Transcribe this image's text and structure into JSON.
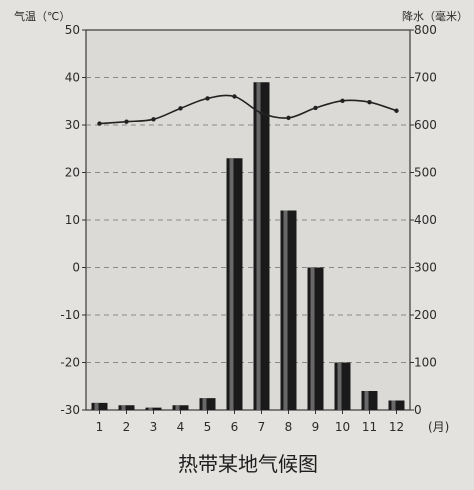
{
  "chart_data": {
    "type": "bar",
    "title": "热带某地气候图",
    "xlabel": "(月)",
    "categories": [
      "1",
      "2",
      "3",
      "4",
      "5",
      "6",
      "7",
      "8",
      "9",
      "10",
      "11",
      "12"
    ],
    "y_left": {
      "label": "气温（℃）",
      "ylim": [
        -30,
        50
      ],
      "ticks": [
        -30,
        -20,
        -10,
        0,
        10,
        20,
        30,
        40,
        50
      ]
    },
    "y_right": {
      "label": "降水（毫米）",
      "ylim": [
        0,
        800
      ],
      "ticks": [
        0,
        100,
        200,
        300,
        400,
        500,
        600,
        700,
        800
      ]
    },
    "series": [
      {
        "type": "bar",
        "axis": "right",
        "values": [
          15,
          10,
          5,
          10,
          25,
          530,
          690,
          420,
          300,
          100,
          40,
          20
        ]
      },
      {
        "type": "line",
        "axis": "left",
        "values": [
          30.3,
          30.7,
          31.2,
          33.5,
          35.6,
          36,
          32.5,
          31.5,
          33.6,
          35.1,
          34.8,
          33
        ]
      }
    ],
    "grid": "dashed-horizontal",
    "colors": {
      "bar": "#1a1a1a",
      "bar_shade": "#8a8a8a",
      "line": "#222222",
      "grid": "#6d6d6d"
    }
  }
}
